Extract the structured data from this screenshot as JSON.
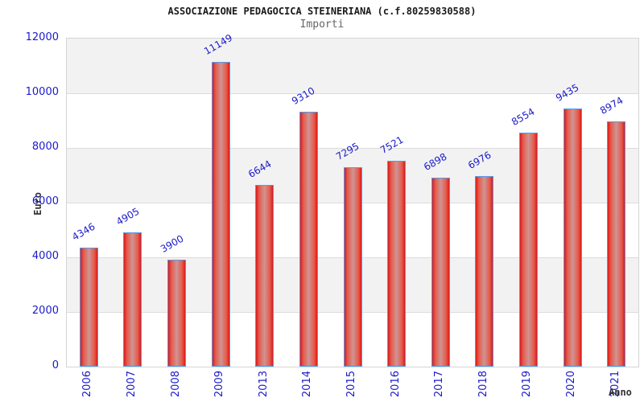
{
  "header": {
    "title": "ASSOCIAZIONE PEDAGOCICA STEINERIANA (c.f.80259830588)",
    "subtitle": "Importi"
  },
  "chart_data": {
    "type": "bar",
    "title": "ASSOCIAZIONE PEDAGOCICA STEINERIANA (c.f.80259830588)",
    "subtitle": "Importi",
    "xlabel": "Anno",
    "ylabel": "Euro",
    "categories": [
      "2006",
      "2007",
      "2008",
      "2009",
      "2013",
      "2014",
      "2015",
      "2016",
      "2017",
      "2018",
      "2019",
      "2020",
      "2021"
    ],
    "values": [
      4346,
      4905,
      3900,
      11149,
      6644,
      9310,
      7295,
      7521,
      6898,
      6976,
      8554,
      9435,
      8974
    ],
    "bar_value_labels": true,
    "ylim": [
      0,
      12000
    ],
    "yticks": [
      0,
      2000,
      4000,
      6000,
      8000,
      10000,
      12000
    ],
    "grid": "alternating-horizontal-bands",
    "legend_position": "none",
    "colors": {
      "label_blue": "#1a1acc",
      "bar_edge": "#dd1a1a",
      "bar_inner": "#e65a49",
      "bar_mid": "#cf9494",
      "bar_border": "#559ae8",
      "band_gray": "#f2f2f2",
      "band_white": "#ffffff",
      "plot_border": "#d4d4d4",
      "grid_line": "#dcdcdc",
      "title_text": "#1a1a1a",
      "subtitle_text": "#666666",
      "axis_title_text": "#333333"
    }
  }
}
